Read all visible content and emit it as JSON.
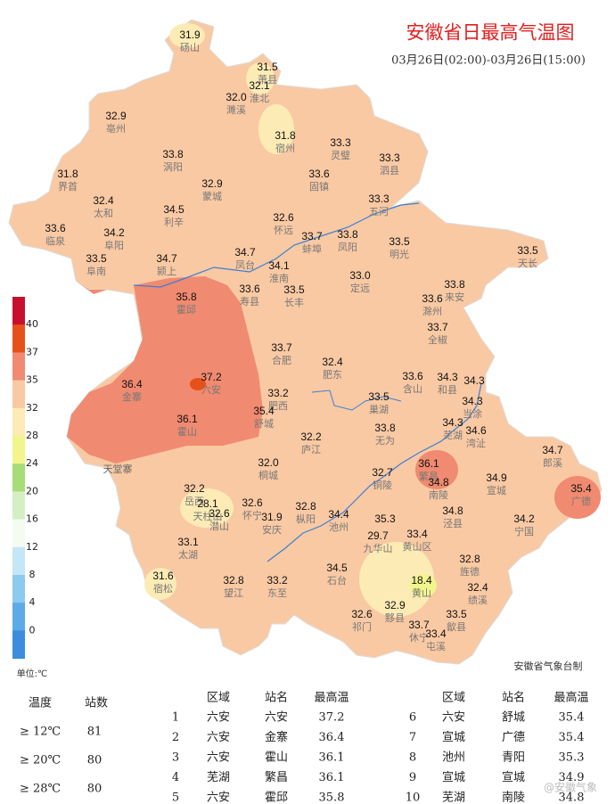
{
  "title": "安徽省日最高气温图",
  "subtitle": "03月26日(02:00)-03月26日(15:00)",
  "credit": "安徽省气象台制",
  "place_label": "天堂寨",
  "watermark": "@安徽气象",
  "legend": {
    "unit": "单位:℃",
    "ticks": [
      40,
      37,
      35,
      32,
      28,
      24,
      20,
      16,
      12,
      8,
      4,
      0
    ],
    "colors": [
      "#c8102e",
      "#e8501a",
      "#f08a70",
      "#f9c9a3",
      "#fcebb4",
      "#f2f58c",
      "#a6dd78",
      "#d4efc4",
      "#f4fbf1",
      "#c3e7f6",
      "#8dcaf0",
      "#5cabe7",
      "#3d8ddf"
    ]
  },
  "stations": [
    {
      "value": "31.9",
      "name": "砀山"
    },
    {
      "value": "31.5",
      "name": "萧县"
    },
    {
      "value": "32.1",
      "name": "淮北"
    },
    {
      "value": "32.0",
      "name": "濉溪"
    },
    {
      "value": "32.9",
      "name": "亳州"
    },
    {
      "value": "31.8",
      "name": "宿州"
    },
    {
      "value": "33.3",
      "name": "灵璧"
    },
    {
      "value": "33.8",
      "name": "涡阳"
    },
    {
      "value": "33.3",
      "name": "泗县"
    },
    {
      "value": "31.8",
      "name": "界首"
    },
    {
      "value": "33.6",
      "name": "固镇"
    },
    {
      "value": "32.9",
      "name": "蒙城"
    },
    {
      "value": "33.3",
      "name": "五河"
    },
    {
      "value": "32.4",
      "name": "太和"
    },
    {
      "value": "34.5",
      "name": "利辛"
    },
    {
      "value": "32.6",
      "name": "怀远"
    },
    {
      "value": "33.6",
      "name": "临泉"
    },
    {
      "value": "34.2",
      "name": "阜阳"
    },
    {
      "value": "33.7",
      "name": "蚌埠"
    },
    {
      "value": "33.8",
      "name": "凤阳"
    },
    {
      "value": "33.5",
      "name": "明光"
    },
    {
      "value": "33.5",
      "name": "天长"
    },
    {
      "value": "33.5",
      "name": "阜南"
    },
    {
      "value": "34.7",
      "name": "颍上"
    },
    {
      "value": "34.7",
      "name": "凤台"
    },
    {
      "value": "34.1",
      "name": "淮南"
    },
    {
      "value": "33.0",
      "name": "定远"
    },
    {
      "value": "33.6",
      "name": "寿县"
    },
    {
      "value": "33.5",
      "name": "长丰"
    },
    {
      "value": "33.8",
      "name": "来安"
    },
    {
      "value": "35.8",
      "name": "霍邱"
    },
    {
      "value": "33.6",
      "name": "滁州"
    },
    {
      "value": "33.7",
      "name": "全椒"
    },
    {
      "value": "33.7",
      "name": "合肥"
    },
    {
      "value": "32.4",
      "name": "肥东"
    },
    {
      "value": "37.2",
      "name": "六安"
    },
    {
      "value": "36.4",
      "name": "金寨"
    },
    {
      "value": "33.6",
      "name": "含山"
    },
    {
      "value": "34.3",
      "name": "和县"
    },
    {
      "value": "34.3"
    },
    {
      "value": "34.3",
      "name": "当涂"
    },
    {
      "value": "33.2",
      "name": "肥西"
    },
    {
      "value": "33.5",
      "name": "巢湖"
    },
    {
      "value": "35.4",
      "name": "舒城"
    },
    {
      "value": "36.1",
      "name": "霍山"
    },
    {
      "value": "33.8",
      "name": "无为"
    },
    {
      "value": "34.3",
      "name": "芜湖"
    },
    {
      "value": "32.2",
      "name": "庐江"
    },
    {
      "value": "34.6",
      "name": "湾沚"
    },
    {
      "value": "34.7",
      "name": "郎溪"
    },
    {
      "value": "32.0",
      "name": "桐城"
    },
    {
      "value": "36.1",
      "name": "繁昌"
    },
    {
      "value": "34.9",
      "name": "宣城"
    },
    {
      "value": "32.7",
      "name": "铜陵"
    },
    {
      "value": "34.8",
      "name": "南陵"
    },
    {
      "value": "35.4",
      "name": "广德"
    },
    {
      "value": "32.2",
      "name": "岳西"
    },
    {
      "value": "28.1",
      "name": "天柱山"
    },
    {
      "value": "32.6",
      "name": "潜山"
    },
    {
      "value": "32.6",
      "name": "怀宁"
    },
    {
      "value": "32.8",
      "name": "枞阳"
    },
    {
      "value": "31.9",
      "name": "安庆"
    },
    {
      "value": "34.4",
      "name": "池州"
    },
    {
      "value": "34.8",
      "name": "泾县"
    },
    {
      "value": "34.2",
      "name": "宁国"
    },
    {
      "value": "35.3"
    },
    {
      "value": "29.7",
      "name": "九华山"
    },
    {
      "value": "33.1",
      "name": "太湖"
    },
    {
      "value": "33.4",
      "name": "黄山区"
    },
    {
      "value": "32.8",
      "name": "旌德"
    },
    {
      "value": "31.6",
      "name": "宿松"
    },
    {
      "value": "32.8",
      "name": "望江"
    },
    {
      "value": "33.2",
      "name": "东至"
    },
    {
      "value": "34.5",
      "name": "石台"
    },
    {
      "value": "18.4",
      "name": "黄山"
    },
    {
      "value": "32.4",
      "name": "绩溪"
    },
    {
      "value": "32.6",
      "name": "祁门"
    },
    {
      "value": "32.9",
      "name": "黟县"
    },
    {
      "value": "33.5",
      "name": "歙县"
    },
    {
      "value": "33.7",
      "name": "休宁"
    },
    {
      "value": "33.4",
      "name": "屯溪"
    }
  ],
  "stats": {
    "headers": [
      "温度",
      "站数"
    ],
    "rows": [
      [
        "≥ 12℃",
        "81"
      ],
      [
        "≥ 20℃",
        "80"
      ],
      [
        "≥ 28℃",
        "80"
      ]
    ]
  },
  "table": {
    "headers": [
      "区域",
      "站名",
      "最高温"
    ],
    "rows": [
      [
        "1",
        "六安",
        "六安",
        "37.2"
      ],
      [
        "2",
        "六安",
        "金寨",
        "36.4"
      ],
      [
        "3",
        "六安",
        "霍山",
        "36.1"
      ],
      [
        "4",
        "芜湖",
        "繁昌",
        "36.1"
      ],
      [
        "5",
        "六安",
        "霍邱",
        "35.8"
      ],
      [
        "6",
        "六安",
        "舒城",
        "35.4"
      ],
      [
        "7",
        "宣城",
        "广德",
        "35.4"
      ],
      [
        "8",
        "池州",
        "青阳",
        "35.3"
      ],
      [
        "9",
        "宣城",
        "宣城",
        "34.9"
      ],
      [
        "10",
        "芜湖",
        "南陵",
        "34.8"
      ]
    ]
  }
}
